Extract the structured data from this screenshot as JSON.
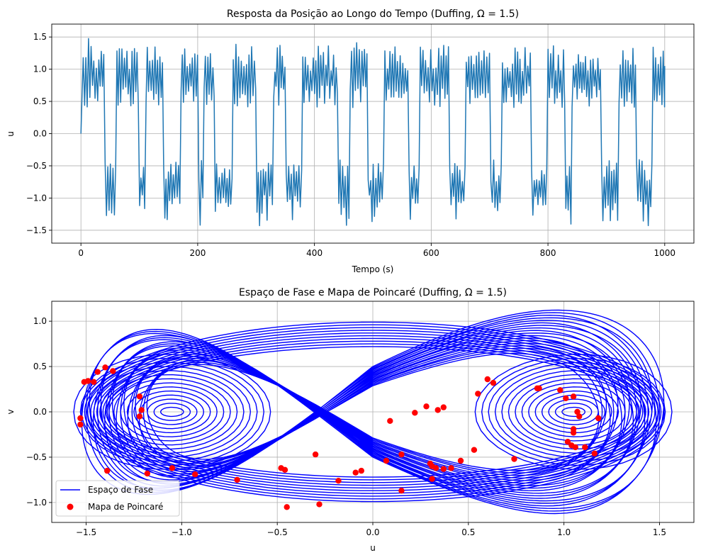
{
  "chart_data": [
    {
      "type": "line",
      "title": "Resposta da Posição ao Longo do Tempo (Duffing, Ω = 1.5)",
      "xlabel": "Tempo (s)",
      "ylabel": "u",
      "xlim": [
        -50,
        1050
      ],
      "ylim": [
        -1.7,
        1.7
      ],
      "xticks": [
        0,
        200,
        400,
        600,
        800,
        1000
      ],
      "xtick_labels": [
        "0",
        "200",
        "400",
        "600",
        "800",
        "1000"
      ],
      "yticks": [
        -1.5,
        -1.0,
        -0.5,
        0.0,
        0.5,
        1.0,
        1.5
      ],
      "ytick_labels": [
        "−1.5",
        "−1.0",
        "−0.5",
        "0.0",
        "0.5",
        "1.0",
        "1.5"
      ],
      "grid": true,
      "color": "#1f77b4",
      "t_range": [
        0,
        1000
      ],
      "well_sequence": [
        1,
        1,
        1,
        1,
        -1,
        -1,
        1,
        1,
        1,
        1,
        -1,
        1,
        1,
        1,
        -1,
        -1,
        -1,
        1,
        1,
        1,
        -1,
        1,
        1,
        -1,
        -1,
        -1,
        1,
        1,
        1,
        1,
        -1,
        -1,
        -1,
        1,
        1,
        -1,
        -1,
        -1,
        1,
        1,
        1,
        1,
        1,
        1,
        -1,
        -1,
        1,
        1,
        1,
        -1,
        -1,
        -1,
        1,
        1,
        1,
        1,
        -1,
        -1,
        1,
        1,
        1,
        1,
        1,
        -1,
        -1,
        -1,
        1,
        1,
        1,
        1,
        -1,
        -1,
        1,
        1,
        1,
        1,
        1,
        -1,
        -1,
        -1,
        1,
        1,
        1,
        -1,
        1,
        1,
        1,
        1,
        1,
        -1,
        -1,
        -1,
        1,
        1,
        1,
        -1,
        -1,
        -1,
        1,
        1
      ],
      "amplitude_max": 1.53,
      "inner_turning_point": 0.4
    },
    {
      "type": "line+scatter",
      "title": "Espaço de Fase e Mapa de Poincaré (Duffing, Ω = 1.5)",
      "xlabel": "u",
      "ylabel": "v",
      "xlim": [
        -1.68,
        1.68
      ],
      "ylim": [
        -1.22,
        1.22
      ],
      "xticks": [
        -1.5,
        -1.0,
        -0.5,
        0.0,
        0.5,
        1.0,
        1.5
      ],
      "xtick_labels": [
        "−1.5",
        "−1.0",
        "−0.5",
        "0.0",
        "0.5",
        "1.0",
        "1.5"
      ],
      "yticks": [
        -1.0,
        -0.5,
        0.0,
        0.5,
        1.0
      ],
      "ytick_labels": [
        "−1.0",
        "−0.5",
        "0.0",
        "0.5",
        "1.0"
      ],
      "grid": true,
      "legend": {
        "placement": "lower-left",
        "entries": [
          {
            "label": "Espaço de Fase",
            "color": "#0000ff",
            "marker": "line"
          },
          {
            "label": "Mapa de Poincaré",
            "color": "#ff0000",
            "marker": "dot"
          }
        ]
      },
      "series": [
        {
          "name": "Espaço de Fase",
          "color": "#0000ff",
          "kind": "line",
          "u_range": [
            -1.53,
            1.53
          ],
          "v_range": [
            -1.02,
            1.08
          ]
        },
        {
          "name": "Mapa de Poincaré",
          "color": "#ff0000",
          "kind": "scatter",
          "points": [
            [
              -1.53,
              -0.07
            ],
            [
              -1.53,
              -0.14
            ],
            [
              -1.51,
              0.33
            ],
            [
              -1.49,
              0.34
            ],
            [
              -1.46,
              0.33
            ],
            [
              -1.44,
              0.44
            ],
            [
              -1.4,
              0.49
            ],
            [
              -1.36,
              0.45
            ],
            [
              -1.39,
              -0.65
            ],
            [
              -1.22,
              0.17
            ],
            [
              -1.21,
              0.02
            ],
            [
              -1.22,
              -0.05
            ],
            [
              -1.18,
              -0.68
            ],
            [
              -1.05,
              -0.62
            ],
            [
              -0.93,
              -0.69
            ],
            [
              -0.71,
              -0.75
            ],
            [
              -0.48,
              -0.62
            ],
            [
              -0.46,
              -0.64
            ],
            [
              -0.3,
              -0.47
            ],
            [
              -0.45,
              -1.05
            ],
            [
              -0.28,
              -1.02
            ],
            [
              -0.18,
              -0.76
            ],
            [
              -0.09,
              -0.67
            ],
            [
              -0.06,
              -0.65
            ],
            [
              0.07,
              -0.54
            ],
            [
              0.15,
              -0.47
            ],
            [
              0.15,
              -0.87
            ],
            [
              0.09,
              -0.1
            ],
            [
              0.22,
              -0.01
            ],
            [
              0.28,
              0.06
            ],
            [
              0.3,
              -0.57
            ],
            [
              0.31,
              -0.6
            ],
            [
              0.33,
              -0.62
            ],
            [
              0.37,
              -0.63
            ],
            [
              0.31,
              -0.74
            ],
            [
              0.34,
              0.02
            ],
            [
              0.37,
              0.05
            ],
            [
              0.41,
              -0.62
            ],
            [
              0.46,
              -0.54
            ],
            [
              0.53,
              -0.42
            ],
            [
              0.55,
              0.2
            ],
            [
              0.6,
              0.36
            ],
            [
              0.74,
              -0.52
            ],
            [
              0.86,
              0.26
            ],
            [
              0.98,
              0.24
            ],
            [
              1.01,
              0.15
            ],
            [
              1.05,
              0.17
            ],
            [
              1.08,
              -0.05
            ],
            [
              1.07,
              0.0
            ],
            [
              1.05,
              -0.19
            ],
            [
              1.05,
              -0.23
            ],
            [
              1.02,
              -0.33
            ],
            [
              1.04,
              -0.37
            ],
            [
              1.06,
              -0.39
            ],
            [
              1.11,
              -0.39
            ],
            [
              1.18,
              -0.07
            ],
            [
              1.16,
              -0.46
            ],
            [
              0.87,
              0.26
            ],
            [
              0.63,
              0.32
            ]
          ]
        }
      ]
    }
  ]
}
